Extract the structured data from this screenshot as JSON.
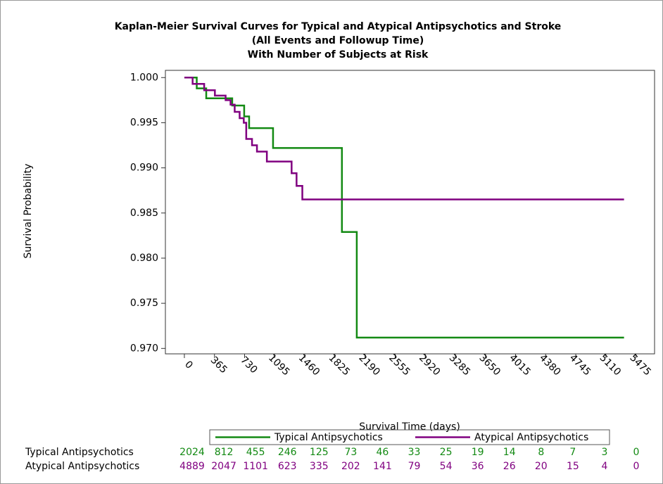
{
  "chart_data": {
    "type": "step",
    "title": [
      "Kaplan-Meier Survival Curves for Typical and Atypical Antipsychotics and Stroke",
      "(All Events and Followup Time)",
      "With Number of Subjects at Risk"
    ],
    "x_label": "Survival Time (days)",
    "y_label": "Survival Probability",
    "xlim": [
      -230,
      5700
    ],
    "ylim": [
      0.9694,
      1.0008
    ],
    "xticks": [
      0,
      365,
      730,
      1095,
      1460,
      1825,
      2190,
      2555,
      2920,
      3285,
      3650,
      4015,
      4380,
      4745,
      5110,
      5475
    ],
    "yticks": [
      {
        "value": 0.97,
        "label": "0.970"
      },
      0.975,
      {
        "value": 0.98,
        "label": "0.980"
      },
      0.985,
      {
        "value": 0.99,
        "label": "0.990"
      },
      0.995,
      {
        "value": 1.0,
        "label": "1.000"
      }
    ],
    "series": [
      {
        "name": "Typical Antipsychotics",
        "color": "#138a13",
        "x": [
          0,
          150,
          265,
          580,
          725,
          785,
          1075,
          1910,
          2090,
          5330
        ],
        "values": [
          1.0,
          0.9988,
          0.9977,
          0.9969,
          0.9957,
          0.9944,
          0.9922,
          0.9829,
          0.9712,
          0.9712
        ]
      },
      {
        "name": "Atypical Antipsychotics",
        "color": "#800080",
        "x": [
          0,
          100,
          240,
          370,
          500,
          560,
          610,
          670,
          720,
          750,
          820,
          880,
          1000,
          1300,
          1360,
          1430,
          5330
        ],
        "values": [
          1.0,
          0.9993,
          0.9986,
          0.998,
          0.9975,
          0.997,
          0.9962,
          0.9955,
          0.995,
          0.9932,
          0.9925,
          0.9918,
          0.9907,
          0.9894,
          0.988,
          0.9865,
          0.9865
        ]
      }
    ],
    "risk_table": [
      {
        "label": "Typical Antipsychotics",
        "values": [
          2024,
          812,
          455,
          246,
          125,
          73,
          46,
          33,
          25,
          19,
          14,
          8,
          7,
          3,
          0
        ]
      },
      {
        "label": "Atypical Antipsychotics",
        "values": [
          4889,
          2047,
          1101,
          623,
          335,
          202,
          141,
          79,
          54,
          36,
          26,
          20,
          15,
          4,
          0
        ]
      }
    ]
  }
}
